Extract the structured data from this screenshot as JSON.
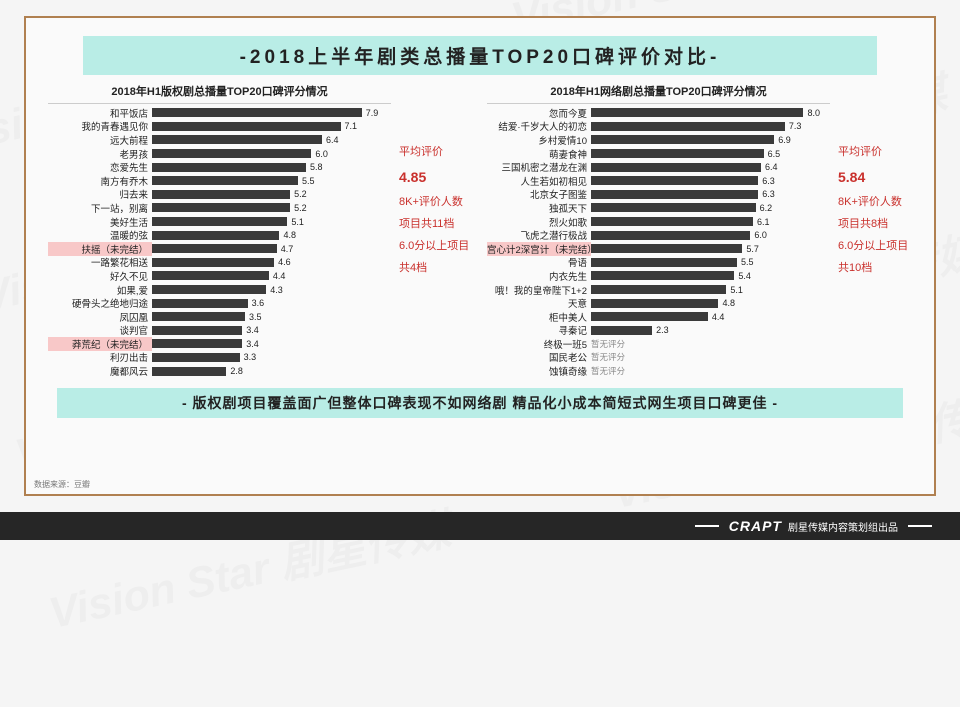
{
  "title": "-2018上半年剧类总播量TOP20口碑评价对比-",
  "watermark_text": "Vision Star 剧星传媒",
  "bottom_caption": "- 版权剧项目覆盖面广但整体口碑表现不如网络剧 精品化小成本简短式网生项目口碑更佳 -",
  "source_label": "数据来源：豆瓣",
  "footer": {
    "brand": "CRAPT",
    "text": "剧星传媒内容策划组出品"
  },
  "charts": {
    "max_value": 9.0,
    "bar_color": "#3a3a3a",
    "highlight_bg": "#f8c8c8",
    "band_bg": "#b9ede6",
    "frame_border": "#b08050",
    "stat_color": "#c9302c",
    "left": {
      "title": "2018年H1版权剧总播量TOP20口碑评分情况",
      "items": [
        {
          "label": "和平饭店",
          "value": 7.9
        },
        {
          "label": "我的青春遇见你",
          "value": 7.1
        },
        {
          "label": "远大前程",
          "value": 6.4
        },
        {
          "label": "老男孩",
          "value": 6.0
        },
        {
          "label": "恋爱先生",
          "value": 5.8
        },
        {
          "label": "南方有乔木",
          "value": 5.5
        },
        {
          "label": "归去来",
          "value": 5.2
        },
        {
          "label": "下一站，别离",
          "value": 5.2
        },
        {
          "label": "美好生活",
          "value": 5.1
        },
        {
          "label": "温暖的弦",
          "value": 4.8
        },
        {
          "label": "扶摇（未完结）",
          "value": 4.7,
          "hl": true
        },
        {
          "label": "一路繁花相送",
          "value": 4.6
        },
        {
          "label": "好久不见",
          "value": 4.4
        },
        {
          "label": "如果,爱",
          "value": 4.3
        },
        {
          "label": "硬骨头之绝地归途",
          "value": 3.6
        },
        {
          "label": "凤囚凰",
          "value": 3.5
        },
        {
          "label": "谈判官",
          "value": 3.4
        },
        {
          "label": "莽荒纪（未完结）",
          "value": 3.4,
          "hl": true
        },
        {
          "label": "利刃出击",
          "value": 3.3
        },
        {
          "label": "魔都风云",
          "value": 2.8
        }
      ],
      "stats": {
        "avg_label": "平均评价",
        "avg_value": "4.85",
        "line1": "8K+评价人数",
        "line2": "项目共11档",
        "line3": "6.0分以上项目",
        "line4": "共4档"
      }
    },
    "right": {
      "title": "2018年H1网络剧总播量TOP20口碑评分情况",
      "items": [
        {
          "label": "忽而今夏",
          "value": 8.0
        },
        {
          "label": "结爱·千岁大人的初恋",
          "value": 7.3
        },
        {
          "label": "乡村爱情10",
          "value": 6.9
        },
        {
          "label": "萌妻食神",
          "value": 6.5
        },
        {
          "label": "三国机密之潜龙在渊",
          "value": 6.4
        },
        {
          "label": "人生若如初相见",
          "value": 6.3
        },
        {
          "label": "北京女子图鉴",
          "value": 6.3
        },
        {
          "label": "独孤天下",
          "value": 6.2
        },
        {
          "label": "烈火如歌",
          "value": 6.1
        },
        {
          "label": "飞虎之潜行极战",
          "value": 6.0
        },
        {
          "label": "宫心计2深宫计（未完结）",
          "value": 5.7,
          "hl": true
        },
        {
          "label": "骨语",
          "value": 5.5
        },
        {
          "label": "内衣先生",
          "value": 5.4
        },
        {
          "label": "哦！我的皇帝陛下1+2",
          "value": 5.1
        },
        {
          "label": "天意",
          "value": 4.8
        },
        {
          "label": "柜中美人",
          "value": 4.4
        },
        {
          "label": "寻秦记",
          "value": 2.3
        },
        {
          "label": "终极一班5",
          "value": null,
          "note": "暂无评分"
        },
        {
          "label": "国民老公",
          "value": null,
          "note": "暂无评分"
        },
        {
          "label": "蚀镇奇缘",
          "value": null,
          "note": "暂无评分"
        }
      ],
      "stats": {
        "avg_label": "平均评价",
        "avg_value": "5.84",
        "line1": "8K+评价人数",
        "line2": "项目共8档",
        "line3": "6.0分以上项目",
        "line4": "共10档"
      }
    }
  }
}
